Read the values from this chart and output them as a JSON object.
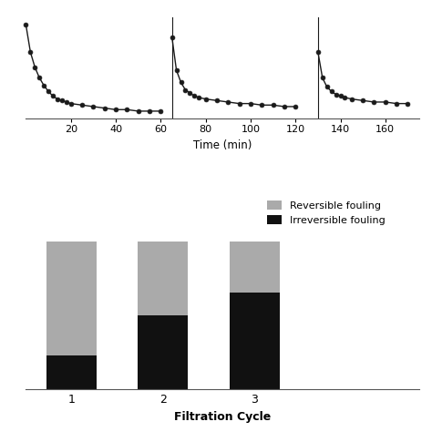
{
  "line_segments": [
    {
      "x": [
        0,
        2,
        4,
        6,
        8,
        10,
        12,
        14,
        16,
        18,
        20,
        25,
        30,
        35,
        40,
        45,
        50,
        55,
        60
      ],
      "y": [
        1.0,
        0.82,
        0.72,
        0.65,
        0.6,
        0.56,
        0.53,
        0.51,
        0.5,
        0.49,
        0.48,
        0.47,
        0.46,
        0.45,
        0.44,
        0.44,
        0.43,
        0.43,
        0.43
      ]
    },
    {
      "x": [
        65,
        67,
        69,
        71,
        73,
        75,
        77,
        80,
        85,
        90,
        95,
        100,
        105,
        110,
        115,
        120
      ],
      "y": [
        0.92,
        0.7,
        0.62,
        0.57,
        0.55,
        0.53,
        0.52,
        0.51,
        0.5,
        0.49,
        0.48,
        0.48,
        0.47,
        0.47,
        0.46,
        0.46
      ]
    },
    {
      "x": [
        130,
        132,
        134,
        136,
        138,
        140,
        142,
        145,
        150,
        155,
        160,
        165,
        170
      ],
      "y": [
        0.82,
        0.65,
        0.59,
        0.56,
        0.54,
        0.53,
        0.52,
        0.51,
        0.5,
        0.49,
        0.49,
        0.48,
        0.48
      ]
    }
  ],
  "vertical_lines": [
    65,
    130
  ],
  "time_xlabel": "Time (min)",
  "time_xticks": [
    20,
    40,
    60,
    80,
    100,
    120,
    140,
    160
  ],
  "time_xlim": [
    0,
    175
  ],
  "time_ylim": [
    0.38,
    1.05
  ],
  "bar_categories": [
    "1",
    "2",
    "3"
  ],
  "bar_irreversible": [
    0.18,
    0.4,
    0.52
  ],
  "bar_reversible": [
    0.62,
    0.4,
    0.28
  ],
  "bar_color_irreversible": "#111111",
  "bar_color_reversible": "#aaaaaa",
  "bar_xlabel": "Filtration Cycle",
  "bar_xlim": [
    -0.5,
    3.8
  ],
  "bar_ylim": [
    0,
    1.0
  ],
  "legend_reversible": "Reversible fouling",
  "legend_irreversible": "Irreversible fouling",
  "background_color": "#ffffff",
  "line_color": "#1a1a1a",
  "marker_color": "#1a1a1a"
}
